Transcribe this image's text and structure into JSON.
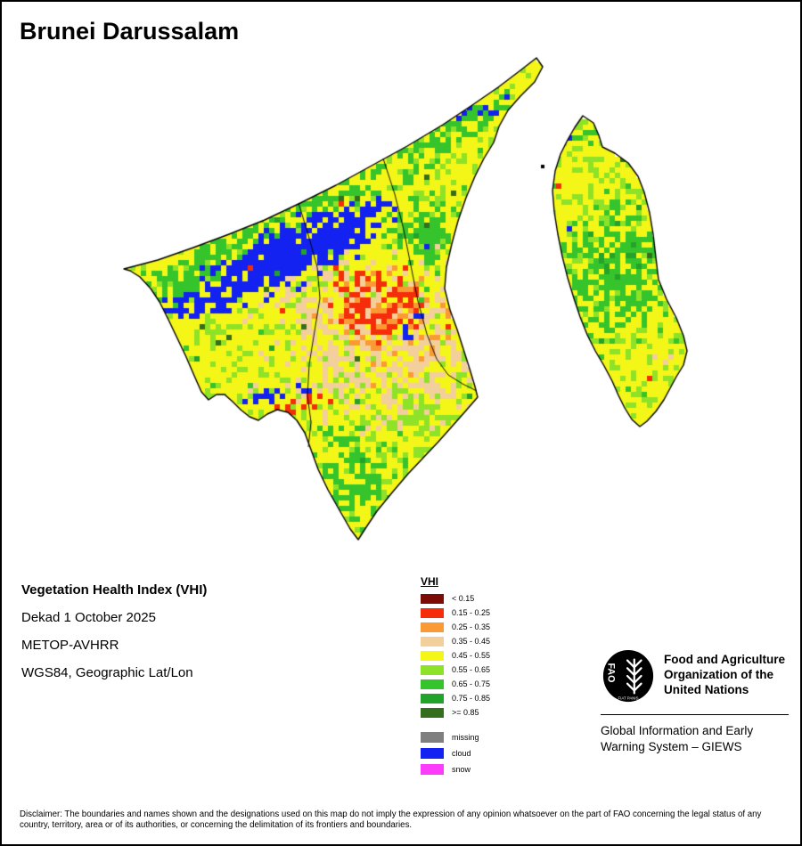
{
  "title": "Brunei Darussalam",
  "info": {
    "product": "Vegetation Health Index (VHI)",
    "dekad": "Dekad 1 October 2025",
    "sensor": "METOP-AVHRR",
    "projection": "WGS84, Geographic Lat/Lon"
  },
  "legend": {
    "title": "VHI",
    "classes": [
      {
        "key": "d_red",
        "label": "< 0.15",
        "color": "#7d0b06"
      },
      {
        "key": "red",
        "label": "0.15 - 0.25",
        "color": "#f52d0a"
      },
      {
        "key": "orange",
        "label": "0.25 - 0.35",
        "color": "#fb9a34"
      },
      {
        "key": "tan",
        "label": "0.35 - 0.45",
        "color": "#f3cf9b"
      },
      {
        "key": "yellow",
        "label": "0.45 - 0.55",
        "color": "#f4f618"
      },
      {
        "key": "ygreen",
        "label": "0.55 - 0.65",
        "color": "#8ee227"
      },
      {
        "key": "green1",
        "label": "0.65 - 0.75",
        "color": "#35c42c"
      },
      {
        "key": "green2",
        "label": "0.75 - 0.85",
        "color": "#23a32a"
      },
      {
        "key": "d_green",
        "label": ">= 0.85",
        "color": "#356f1d"
      }
    ],
    "extra": [
      {
        "key": "missing",
        "label": "missing",
        "color": "#7f7f7f"
      },
      {
        "key": "cloud",
        "label": "cloud",
        "color": "#1322f0"
      },
      {
        "key": "snow",
        "label": "snow",
        "color": "#fb3cfb"
      }
    ]
  },
  "footer": {
    "org_name": "Food and Agriculture\nOrganization of the\nUnited Nations",
    "giews": "Global Information and Early\nWarning System – GIEWS",
    "logo_acronym": "FAO",
    "logo_motto": "FIAT PANIS"
  },
  "disclaimer": "Disclaimer: The boundaries and names shown and the designations used on this map do not imply the expression of any opinion whatsoever on the part of FAO concerning the legal status of any country, territory, area or of its authorities, or concerning the delimitation of its frontiers and boundaries."
}
